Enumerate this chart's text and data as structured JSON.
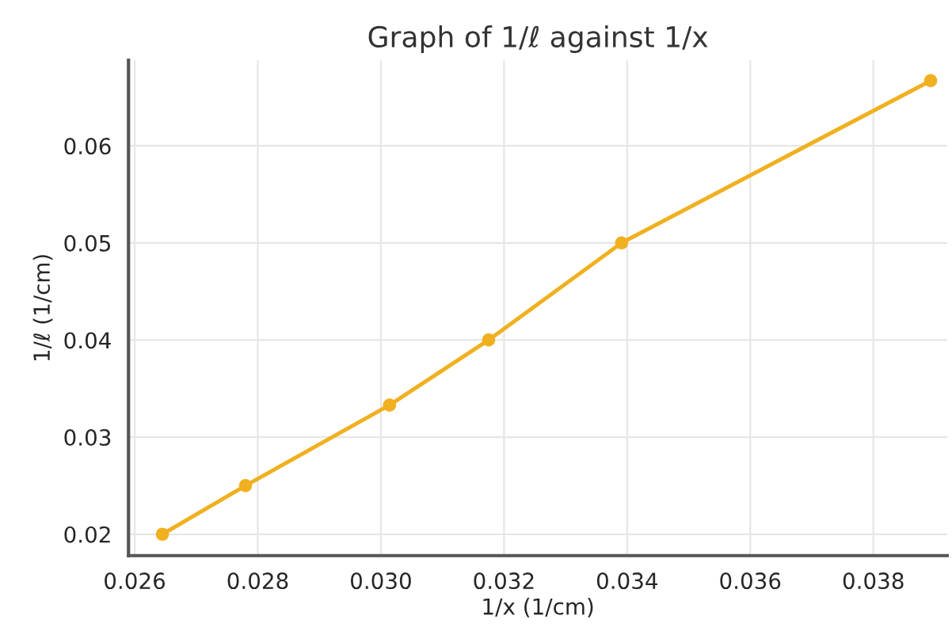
{
  "chart_data": {
    "type": "line",
    "title": "Graph of 1/ℓ against 1/x",
    "xlabel": "1/x (1/cm)",
    "ylabel": "1/ℓ (1/cm)",
    "x": [
      0.02645,
      0.0278,
      0.03014,
      0.03175,
      0.03391,
      0.03893
    ],
    "series": [
      {
        "color": "#f0b020",
        "values": [
          0.02,
          0.025,
          0.0333,
          0.04,
          0.05,
          0.0667
        ]
      }
    ],
    "xlim": [
      0.0259,
      0.0392
    ],
    "ylim": [
      0.0178,
      0.0688
    ],
    "xticks": [
      {
        "value": 0.026,
        "label": "0.026"
      },
      {
        "value": 0.028,
        "label": "0.028"
      },
      {
        "value": 0.03,
        "label": "0.030"
      },
      {
        "value": 0.032,
        "label": "0.032"
      },
      {
        "value": 0.034,
        "label": "0.034"
      },
      {
        "value": 0.036,
        "label": "0.036"
      },
      {
        "value": 0.038,
        "label": "0.038"
      }
    ],
    "yticks": [
      {
        "value": 0.02,
        "label": "0.02"
      },
      {
        "value": 0.03,
        "label": "0.03"
      },
      {
        "value": 0.04,
        "label": "0.04"
      },
      {
        "value": 0.05,
        "label": "0.05"
      },
      {
        "value": 0.06,
        "label": "0.06"
      }
    ],
    "grid": true,
    "marker": "circle",
    "line_style": "solid"
  }
}
